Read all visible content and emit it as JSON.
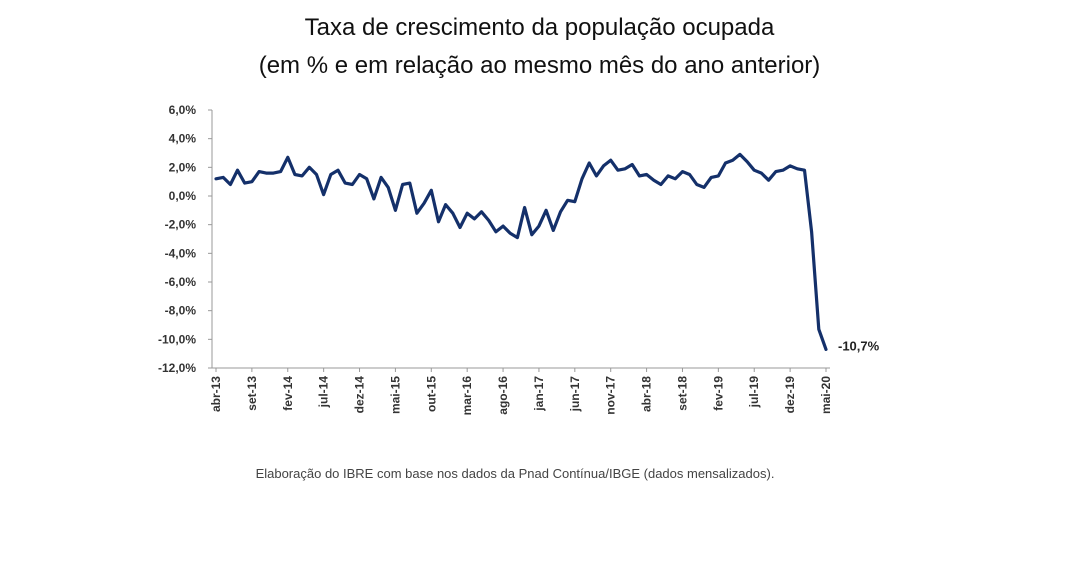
{
  "title_lines": [
    "Taxa de crescimento da população ocupada",
    "(em % e em relação ao mesmo mês do ano anterior)"
  ],
  "source_note": "Elaboração do IBRE com base nos dados da Pnad Contínua/IBGE (dados mensalizados).",
  "colors": {
    "line": "#14306a",
    "axis": "#999999"
  },
  "chart_data": {
    "type": "line",
    "title": "Taxa de crescimento da população ocupada",
    "subtitle": "(em % e em relação ao mesmo mês do ano anterior)",
    "xlabel": "",
    "ylabel": "",
    "ylim": [
      -12,
      6
    ],
    "y_ticks": [
      6,
      4,
      2,
      0,
      -2,
      -4,
      -6,
      -8,
      -10,
      -12
    ],
    "y_tick_labels": [
      "6,0%",
      "4,0%",
      "2,0%",
      "0,0%",
      "-2,0%",
      "-4,0%",
      "-6,0%",
      "-8,0%",
      "-10,0%",
      "-12,0%"
    ],
    "x_tick_labels": [
      "abr-13",
      "set-13",
      "fev-14",
      "jul-14",
      "dez-14",
      "mai-15",
      "out-15",
      "mar-16",
      "ago-16",
      "jan-17",
      "jun-17",
      "nov-17",
      "abr-18",
      "set-18",
      "fev-19",
      "jul-19",
      "dez-19",
      "mai-20"
    ],
    "grid": false,
    "legend": "none",
    "x_start": "2013-04",
    "x_end": "2020-05",
    "series": [
      {
        "values": [
          1.2,
          1.3,
          0.8,
          1.8,
          0.9,
          1.0,
          1.7,
          1.6,
          1.6,
          1.7,
          2.7,
          1.5,
          1.4,
          2.0,
          1.5,
          0.1,
          1.5,
          1.8,
          0.9,
          0.8,
          1.5,
          1.2,
          -0.2,
          1.3,
          0.6,
          -1.0,
          0.8,
          0.9,
          -1.2,
          -0.5,
          0.4,
          -1.8,
          -0.6,
          -1.2,
          -2.2,
          -1.2,
          -1.6,
          -1.1,
          -1.7,
          -2.5,
          -2.1,
          -2.6,
          -2.9,
          -0.8,
          -2.7,
          -2.1,
          -1.0,
          -2.4,
          -1.1,
          -0.3,
          -0.4,
          1.2,
          2.3,
          1.4,
          2.1,
          2.5,
          1.8,
          1.9,
          2.2,
          1.4,
          1.5,
          1.1,
          0.8,
          1.4,
          1.2,
          1.7,
          1.5,
          0.8,
          0.6,
          1.3,
          1.4,
          2.3,
          2.5,
          2.9,
          2.4,
          1.8,
          1.6,
          1.1,
          1.7,
          1.8,
          2.1,
          1.9,
          1.8,
          -2.5,
          -9.3,
          -10.7
        ]
      }
    ],
    "annotations": [
      {
        "label": "-10,7%",
        "value": -10.7,
        "at": "mai-20"
      }
    ]
  }
}
